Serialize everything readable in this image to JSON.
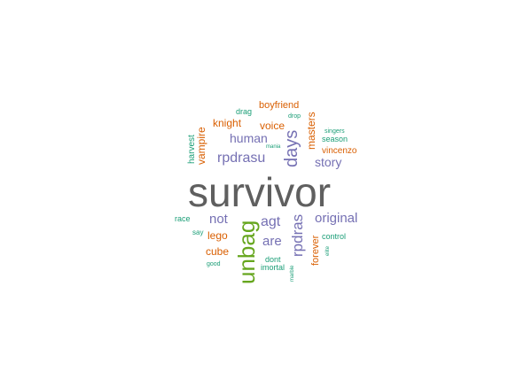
{
  "words": {
    "survivor": "survivor",
    "unbag": "unbag",
    "rpdrasu": "rpdrasu",
    "agt": "agt",
    "days": "days",
    "human": "human",
    "rpdras": "rpdras",
    "original": "original",
    "are": "are",
    "not": "not",
    "story": "story",
    "masters": "masters",
    "vampire": "vampire",
    "knight": "knight",
    "voice": "voice",
    "boyfriend": "boyfriend",
    "cube": "cube",
    "lego": "lego",
    "forever": "forever",
    "vincenzo": "vincenzo",
    "harvest": "harvest",
    "drag": "drag",
    "drop": "drop",
    "mania": "mania",
    "singers": "singers",
    "season": "season",
    "race": "race",
    "say": "say",
    "good": "good",
    "dont": "dont",
    "imortal": "imortal",
    "marble": "marble",
    "control": "control",
    "elite": "elite"
  },
  "colors": {
    "gray": "#5f5f5f",
    "purple": "#7570b3",
    "orange": "#d95f02",
    "teal": "#1b9e77",
    "green": "#66a61e"
  }
}
